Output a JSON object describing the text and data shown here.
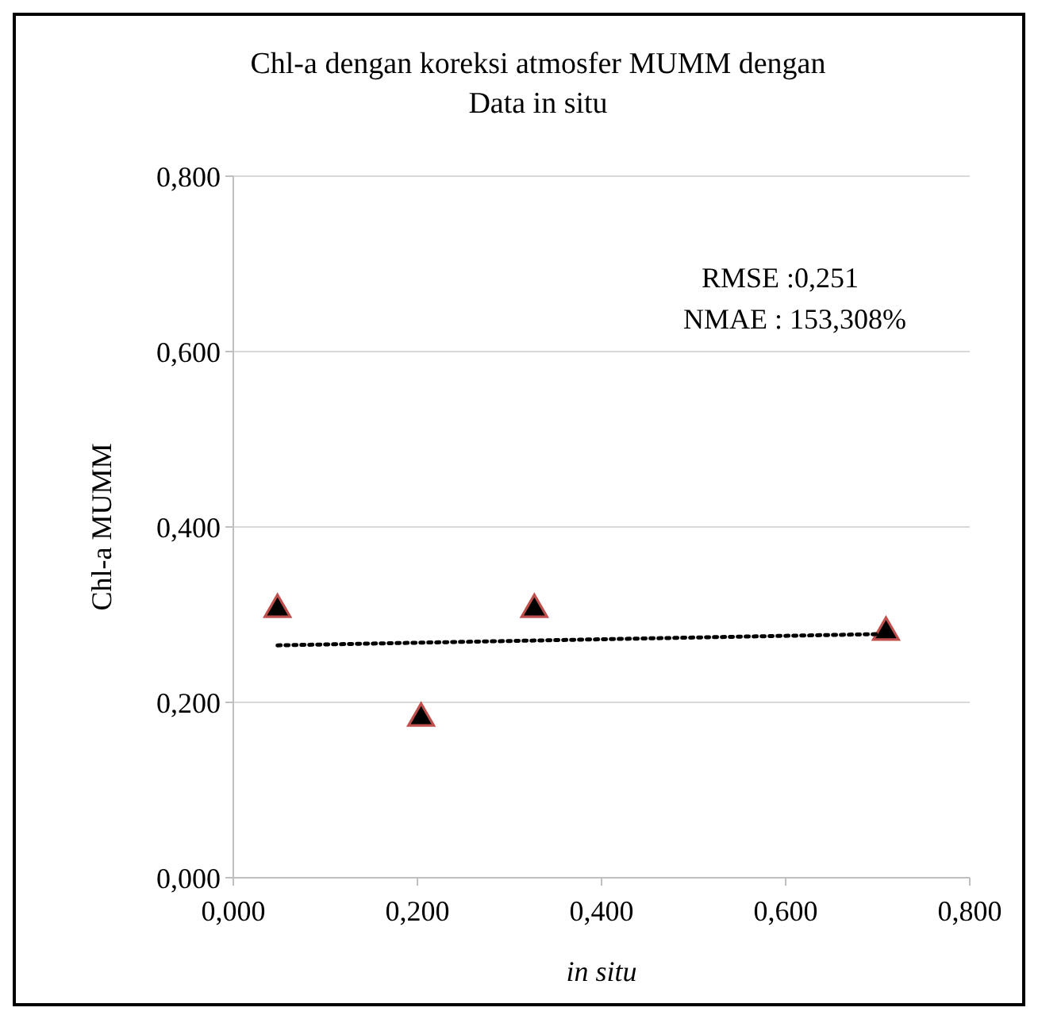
{
  "chart_data": {
    "type": "scatter",
    "title": "Chl-a dengan koreksi atmosfer MUMM  dengan Data in situ",
    "xlabel": "in situ",
    "ylabel": "Chl-a MUMM",
    "xlim": [
      0,
      0.8
    ],
    "xticks": [
      {
        "value": 0,
        "label": "0,000"
      },
      {
        "value": 0.2,
        "label": "0,200"
      },
      {
        "value": 0.4,
        "label": "0,400"
      },
      {
        "value": 0.6,
        "label": "0,600"
      },
      {
        "value": 0.8,
        "label": "0,800"
      }
    ],
    "ylim": [
      0,
      0.8
    ],
    "yticks": [
      {
        "value": 0,
        "label": "0,000"
      },
      {
        "value": 0.2,
        "label": "0,200"
      },
      {
        "value": 0.4,
        "label": "0,400"
      },
      {
        "value": 0.6,
        "label": "0,600"
      },
      {
        "value": 0.8,
        "label": "0,800"
      }
    ],
    "grid": "y",
    "marker": "triangle",
    "series": [
      {
        "color": "#000000",
        "x": [
          0.048,
          0.204,
          0.327,
          0.709
        ],
        "values": [
          0.306,
          0.182,
          0.306,
          0.28
        ]
      },
      {
        "type": "line",
        "color": "#000000",
        "line_style": "dotted",
        "marker": "none",
        "x": [
          0.048,
          0.709
        ],
        "values": [
          0.265,
          0.278
        ]
      }
    ],
    "annotations": [
      "RMSE :0,251",
      "NMAE : 153,308%"
    ]
  }
}
